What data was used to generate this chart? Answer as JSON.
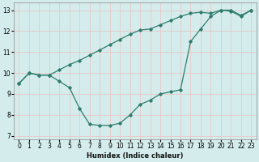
{
  "xlabel": "Humidex (Indice chaleur)",
  "background_color": "#d4ecec",
  "grid_color": "#c8dada",
  "line_color": "#2e7d6e",
  "xlim": [
    -0.5,
    23.5
  ],
  "ylim": [
    6.85,
    13.35
  ],
  "yticks": [
    7,
    8,
    9,
    10,
    11,
    12,
    13
  ],
  "xticks": [
    0,
    1,
    2,
    3,
    4,
    5,
    6,
    7,
    8,
    9,
    10,
    11,
    12,
    13,
    14,
    15,
    16,
    17,
    18,
    19,
    20,
    21,
    22,
    23
  ],
  "line1_x": [
    0,
    1,
    2,
    3,
    4,
    5,
    6,
    7,
    8,
    9,
    10,
    11,
    12,
    13,
    14,
    15,
    16,
    17,
    18,
    19,
    20,
    21,
    22,
    23
  ],
  "line1_y": [
    9.5,
    10.0,
    9.9,
    9.9,
    9.6,
    9.3,
    8.3,
    7.55,
    7.5,
    7.5,
    7.6,
    8.0,
    8.5,
    8.7,
    9.0,
    9.1,
    9.2,
    11.5,
    12.1,
    12.7,
    13.0,
    12.95,
    12.7,
    13.0
  ],
  "line2_x": [
    0,
    1,
    2,
    3,
    4,
    5,
    6,
    7,
    8,
    9,
    10,
    11,
    12,
    13,
    14,
    15,
    16,
    17,
    18,
    19,
    20,
    21,
    22,
    23
  ],
  "line2_y": [
    9.5,
    10.0,
    9.9,
    9.9,
    10.15,
    10.4,
    10.6,
    10.85,
    11.1,
    11.35,
    11.6,
    11.85,
    12.05,
    12.1,
    12.3,
    12.5,
    12.7,
    12.85,
    12.9,
    12.85,
    13.0,
    13.0,
    12.75,
    13.0
  ]
}
